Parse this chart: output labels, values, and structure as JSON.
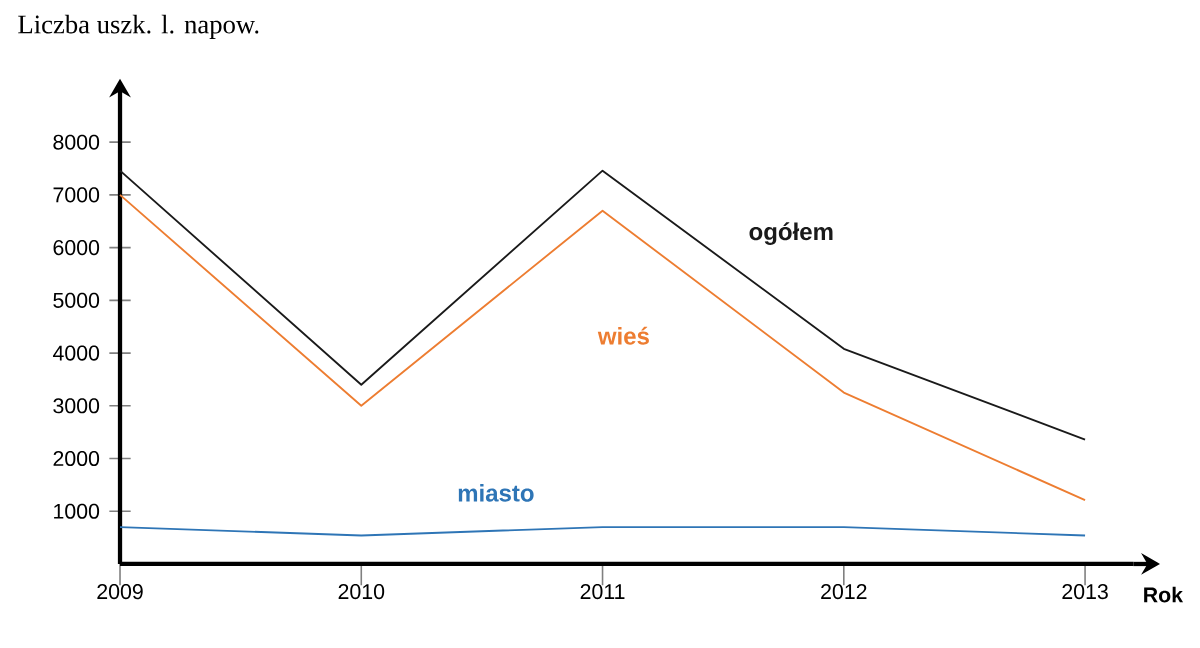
{
  "chart_data": {
    "type": "line",
    "ylabel": "Liczba uszk. l. napow.",
    "xlabel": "Rok",
    "categories": [
      "2009",
      "2010",
      "2011",
      "2012",
      "2013"
    ],
    "series": [
      {
        "name": "ogółem",
        "color": "#1a1a1a",
        "values": [
          7460,
          3400,
          7460,
          4080,
          2360
        ]
      },
      {
        "name": "wieś",
        "color": "#ed7d31",
        "values": [
          7000,
          3000,
          6700,
          3250,
          1210
        ]
      },
      {
        "name": "miasto",
        "color": "#2e75b6",
        "values": [
          700,
          540,
          700,
          700,
          540
        ]
      }
    ],
    "ylim": [
      0,
      8800
    ],
    "yticks": [
      1000,
      2000,
      3000,
      4000,
      5000,
      6000,
      7000,
      8000
    ],
    "grid": false,
    "legend": false,
    "marker": "none",
    "line_style": "solid"
  }
}
